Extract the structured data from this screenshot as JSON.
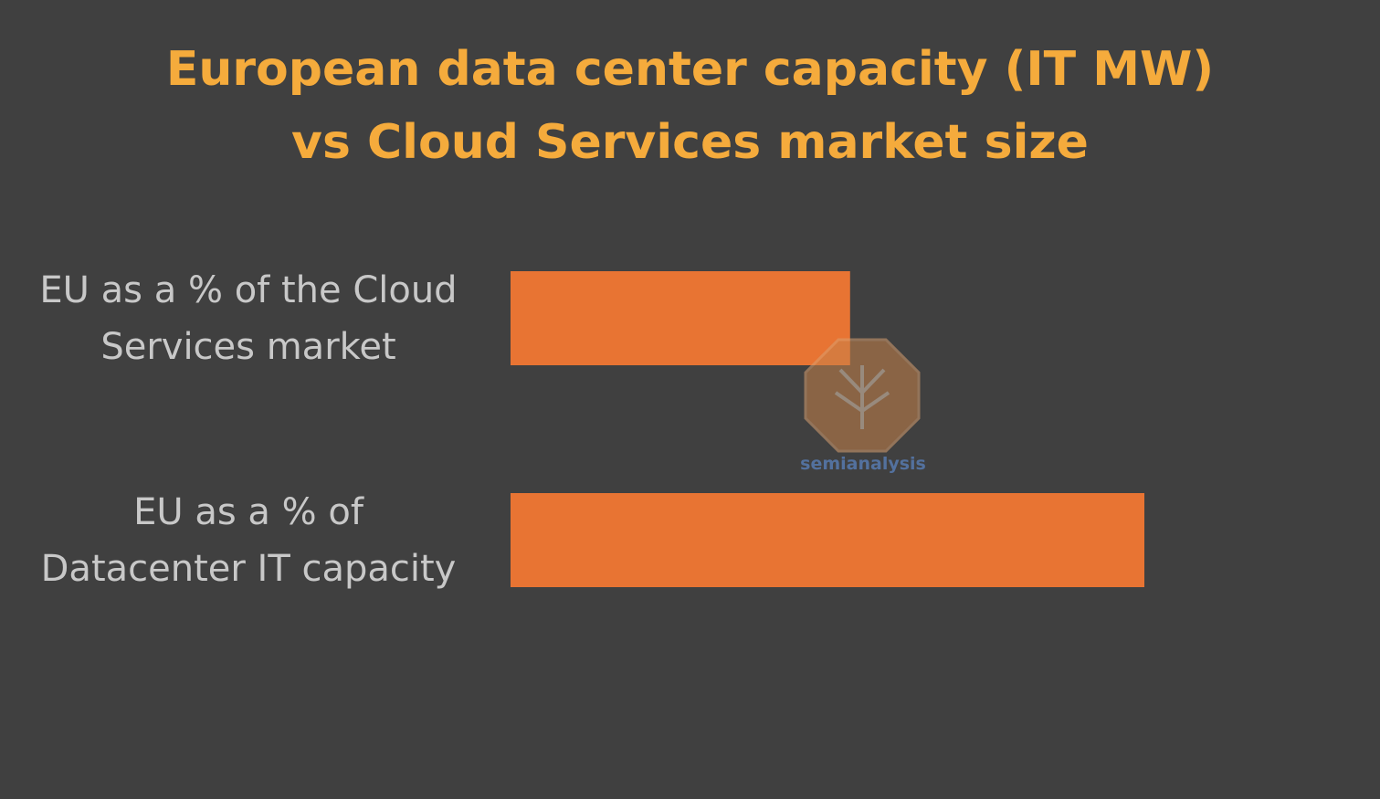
{
  "chart_data": {
    "type": "bar",
    "orientation": "horizontal",
    "title": "European data center capacity (IT MW) vs Cloud Services market size",
    "categories": [
      "EU as a % of the Cloud Services market",
      "EU as a % of Datacenter IT capacity"
    ],
    "values": [
      15,
      28
    ],
    "color": "#e87433"
  },
  "watermark": "semianalysis"
}
